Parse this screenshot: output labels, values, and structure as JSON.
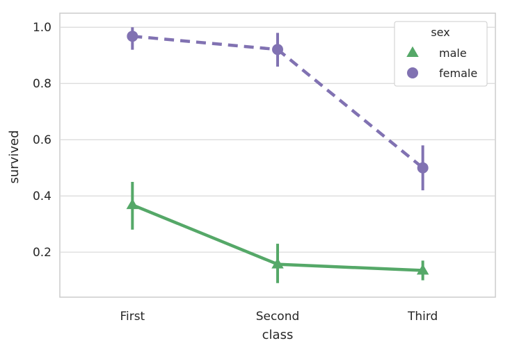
{
  "chart_data": {
    "type": "line",
    "title": "",
    "xlabel": "class",
    "ylabel": "survived",
    "categories": [
      "First",
      "Second",
      "Third"
    ],
    "ylim": [
      0.04,
      1.05
    ],
    "y_ticks": [
      0.2,
      0.4,
      0.6,
      0.8,
      1.0
    ],
    "y_tick_labels": [
      "0.2",
      "0.4",
      "0.6",
      "0.8",
      "1.0"
    ],
    "grid": true,
    "grid_axis": "y",
    "legend": {
      "title": "sex",
      "placement": "top-right"
    },
    "series": [
      {
        "name": "male",
        "values": [
          0.368,
          0.157,
          0.135
        ],
        "ci_low": [
          0.28,
          0.09,
          0.1
        ],
        "ci_high": [
          0.45,
          0.23,
          0.17
        ],
        "color": "#55a868",
        "marker": "triangle",
        "linestyle": "solid"
      },
      {
        "name": "female",
        "values": [
          0.968,
          0.921,
          0.5
        ],
        "ci_low": [
          0.92,
          0.86,
          0.42
        ],
        "ci_high": [
          1.0,
          0.98,
          0.58
        ],
        "color": "#8172b2",
        "marker": "circle",
        "linestyle": "dashed"
      }
    ]
  }
}
